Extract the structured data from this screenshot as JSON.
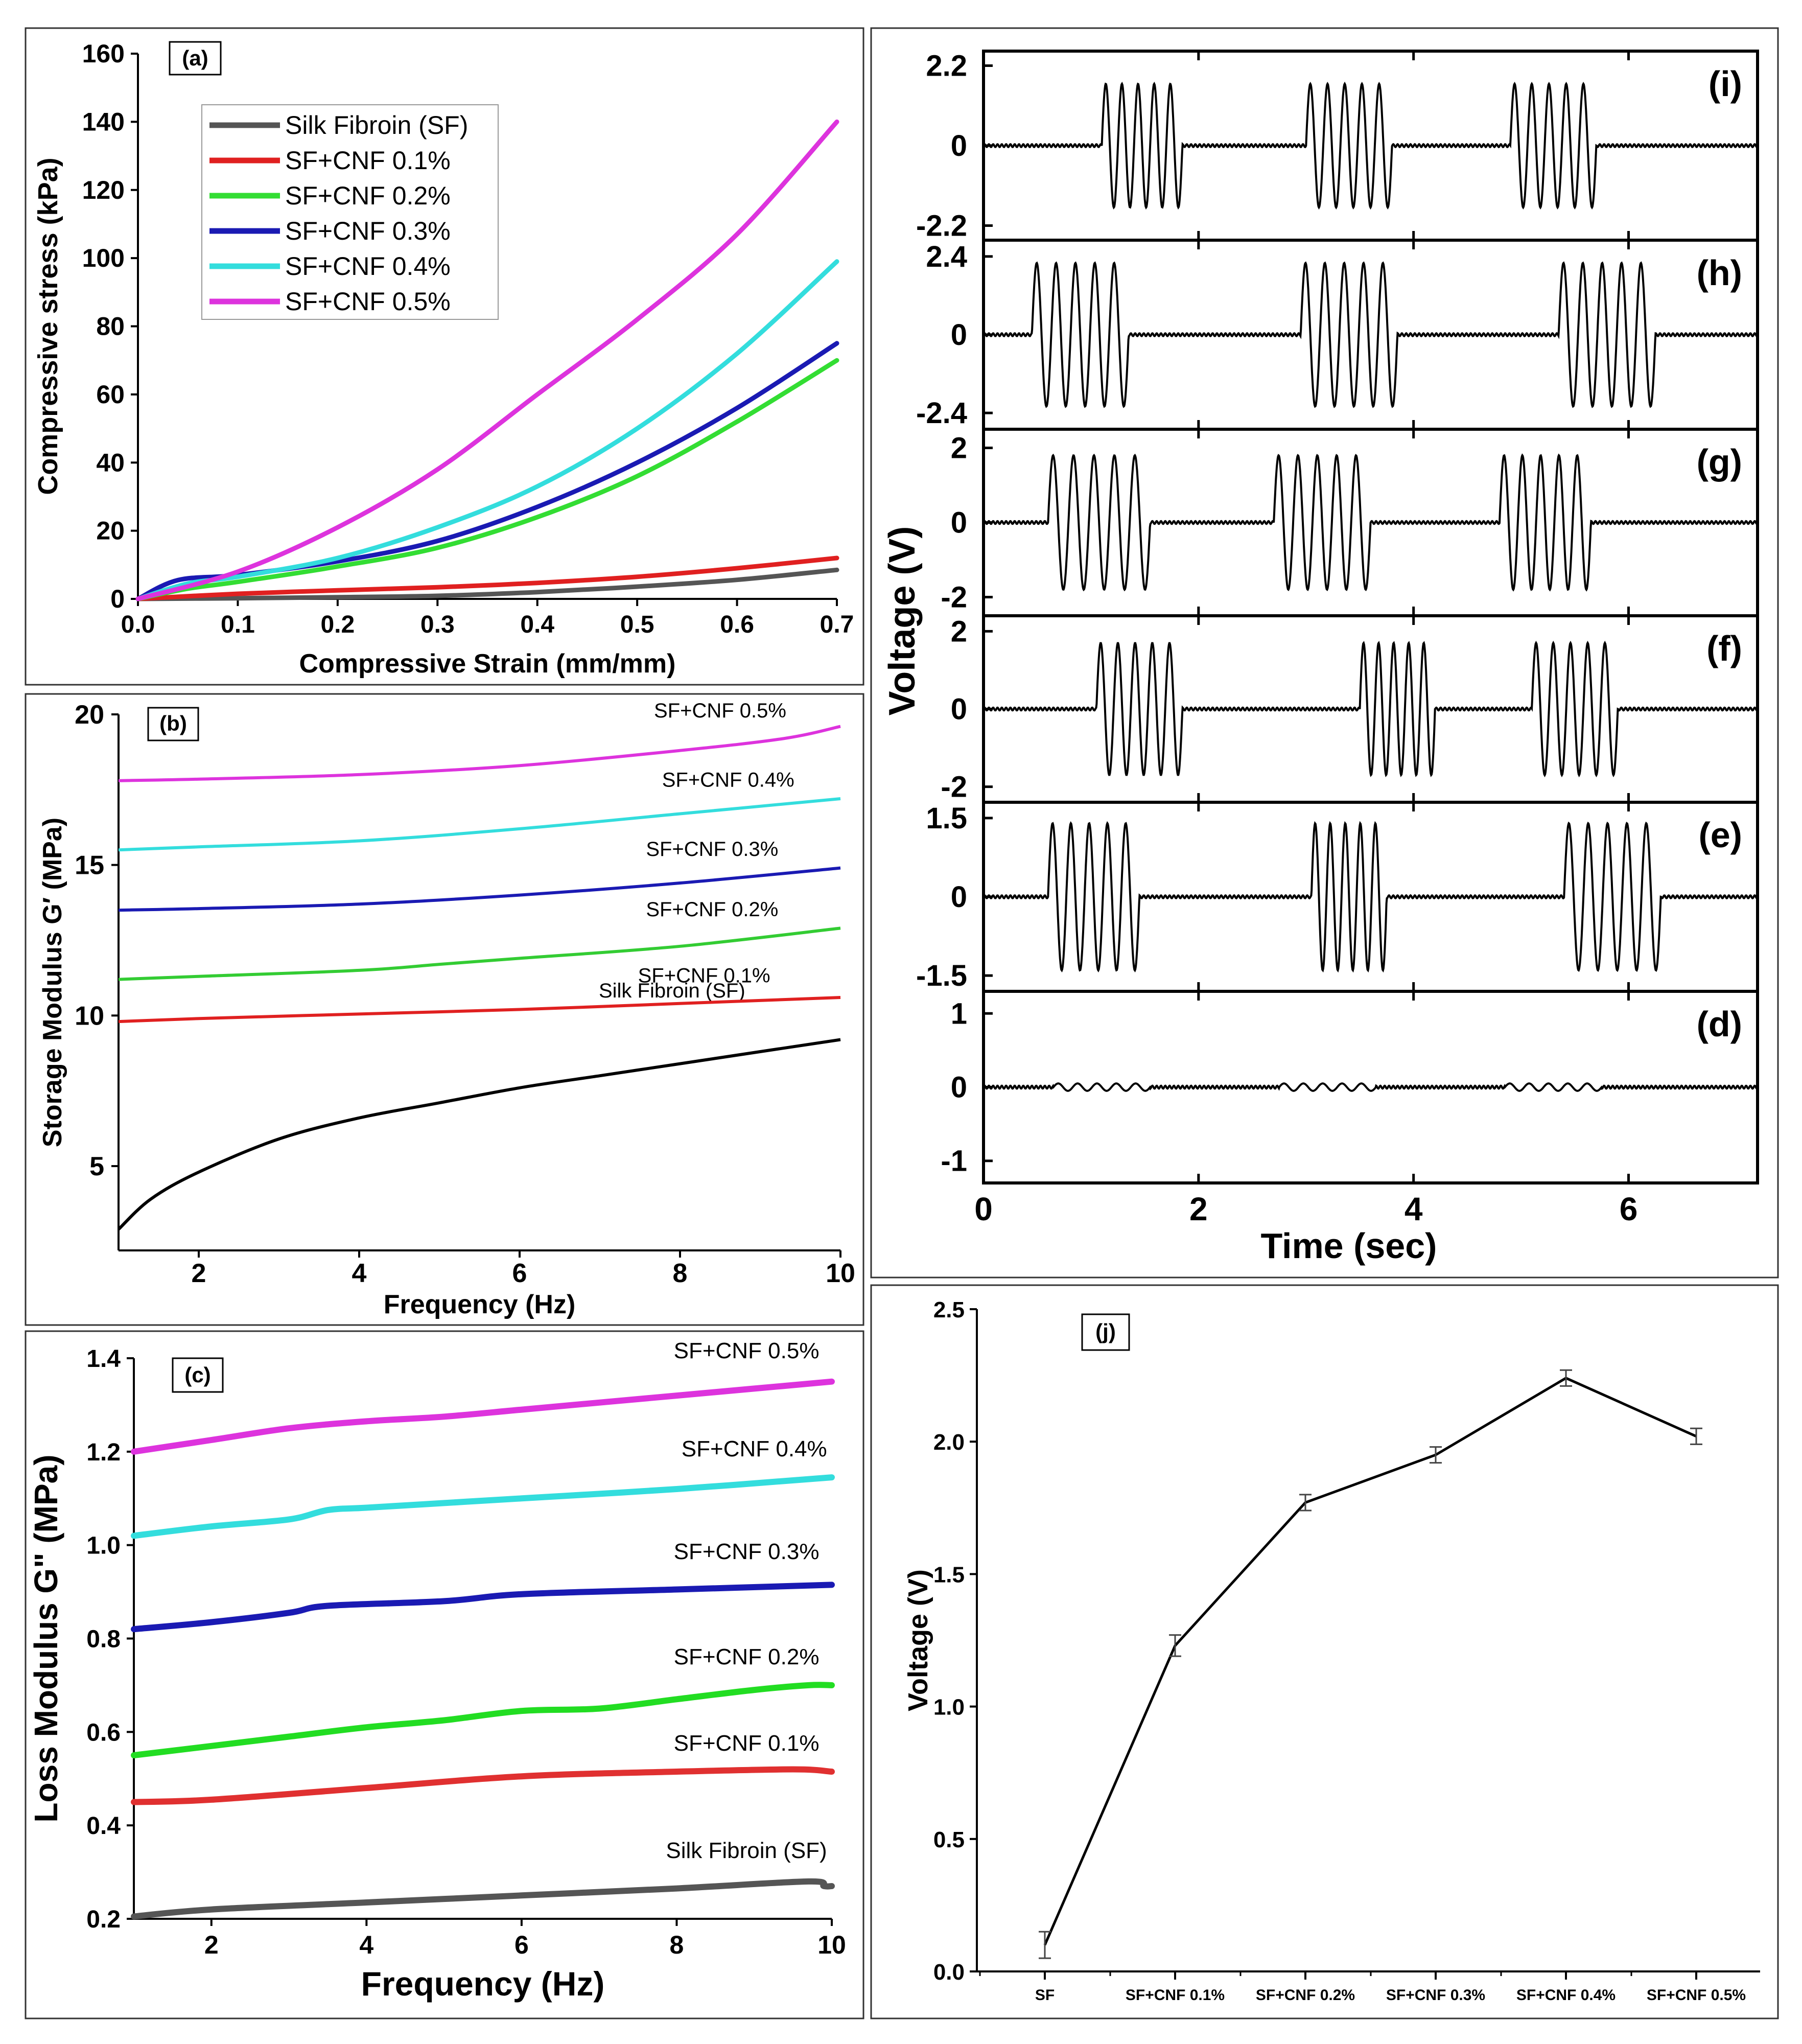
{
  "chart_data": [
    {
      "id": "a",
      "type": "line",
      "panel_label": "(a)",
      "title": "",
      "xlabel": "Compressive Strain (mm/mm)",
      "ylabel": "Compressive stress (kPa)",
      "xlim": [
        0,
        0.7
      ],
      "ylim": [
        0,
        160
      ],
      "xticks": [
        0.0,
        0.1,
        0.2,
        0.3,
        0.4,
        0.5,
        0.6,
        0.7
      ],
      "xtick_labels": [
        "0.0",
        "0.1",
        "0.2",
        "0.3",
        "0.4",
        "0.5",
        "0.6",
        "0.7"
      ],
      "yticks": [
        0,
        20,
        40,
        60,
        80,
        100,
        120,
        140,
        160
      ],
      "ytick_labels": [
        "0",
        "20",
        "40",
        "60",
        "80",
        "100",
        "120",
        "140",
        "160"
      ],
      "legend_position": "top-left",
      "series": [
        {
          "name": "Silk Fibroin (SF)",
          "color": "#555555",
          "x": [
            0,
            0.1,
            0.2,
            0.3,
            0.4,
            0.5,
            0.6,
            0.7
          ],
          "y": [
            0,
            0.2,
            0.5,
            0.9,
            2.0,
            3.6,
            5.6,
            8.5
          ]
        },
        {
          "name": "SF+CNF 0.1%",
          "color": "#e02020",
          "x": [
            0,
            0.1,
            0.2,
            0.3,
            0.4,
            0.5,
            0.6,
            0.7
          ],
          "y": [
            0,
            1.5,
            2.5,
            3.4,
            4.7,
            6.5,
            9.0,
            12
          ]
        },
        {
          "name": "SF+CNF 0.2%",
          "color": "#33dd33",
          "x": [
            0,
            0.05,
            0.1,
            0.2,
            0.3,
            0.4,
            0.5,
            0.6,
            0.7
          ],
          "y": [
            0,
            3,
            5,
            9.5,
            15,
            24,
            36,
            52,
            70
          ]
        },
        {
          "name": "SF+CNF 0.3%",
          "color": "#1a1ab3",
          "x": [
            0,
            0.04,
            0.1,
            0.2,
            0.3,
            0.4,
            0.5,
            0.6,
            0.7
          ],
          "y": [
            0,
            5.5,
            7,
            11,
            17,
            27,
            40,
            56,
            75
          ]
        },
        {
          "name": "SF+CNF 0.4%",
          "color": "#33dddd",
          "x": [
            0,
            0.05,
            0.1,
            0.2,
            0.3,
            0.4,
            0.5,
            0.6,
            0.7
          ],
          "y": [
            0,
            4.5,
            6.5,
            12,
            21,
            33,
            50,
            72,
            99
          ]
        },
        {
          "name": "SF+CNF 0.5%",
          "color": "#dd33dd",
          "x": [
            0,
            0.1,
            0.2,
            0.3,
            0.4,
            0.5,
            0.6,
            0.7
          ],
          "y": [
            0,
            8,
            21,
            38,
            60,
            82,
            107,
            140
          ]
        }
      ]
    },
    {
      "id": "b",
      "type": "line",
      "panel_label": "(b)",
      "title": "",
      "xlabel": "Frequency (Hz)",
      "ylabel": "Storage Modulus G′ (MPa)",
      "xlim": [
        1,
        10
      ],
      "ylim": [
        2.2,
        20
      ],
      "xticks": [
        2,
        4,
        6,
        8,
        10
      ],
      "xtick_labels": [
        "2",
        "4",
        "6",
        "8",
        "10"
      ],
      "yticks": [
        5,
        10,
        15,
        20
      ],
      "ytick_labels": [
        "5",
        "10",
        "15",
        "20"
      ],
      "legend_position": "inline labels",
      "series": [
        {
          "name": "Silk Fibroin (SF)",
          "color": "#000000",
          "x": [
            1,
            1.4,
            2,
            3,
            4,
            5,
            6,
            7,
            8,
            9,
            10
          ],
          "y": [
            2.9,
            3.9,
            4.8,
            5.9,
            6.6,
            7.1,
            7.6,
            8.0,
            8.4,
            8.8,
            9.2
          ],
          "label_x": 7.9,
          "label_y": 10.6
        },
        {
          "name": "SF+CNF 0.1%",
          "color": "#e02020",
          "x": [
            1,
            2,
            4,
            6,
            8,
            10
          ],
          "y": [
            9.8,
            9.9,
            10.05,
            10.2,
            10.4,
            10.6
          ],
          "label_x": 8.3,
          "label_y": 11.1
        },
        {
          "name": "SF+CNF 0.2%",
          "color": "#33cc33",
          "x": [
            1,
            2,
            4,
            5,
            6,
            8,
            10
          ],
          "y": [
            11.2,
            11.3,
            11.5,
            11.7,
            11.9,
            12.3,
            12.9
          ],
          "label_x": 8.4,
          "label_y": 13.3
        },
        {
          "name": "SF+CNF 0.3%",
          "color": "#1a1ab3",
          "x": [
            1,
            2,
            4,
            6,
            8,
            10
          ],
          "y": [
            13.5,
            13.55,
            13.7,
            14.0,
            14.4,
            14.9
          ],
          "label_x": 8.4,
          "label_y": 15.3
        },
        {
          "name": "SF+CNF 0.4%",
          "color": "#33dddd",
          "x": [
            1,
            2,
            4,
            6,
            8,
            10
          ],
          "y": [
            15.5,
            15.6,
            15.8,
            16.2,
            16.7,
            17.2
          ],
          "label_x": 8.6,
          "label_y": 17.6
        },
        {
          "name": "SF+CNF 0.5%",
          "color": "#dd33dd",
          "x": [
            1,
            2,
            4,
            6,
            8,
            9.3,
            10
          ],
          "y": [
            17.8,
            17.85,
            18.0,
            18.3,
            18.8,
            19.2,
            19.6
          ],
          "label_x": 8.5,
          "label_y": 19.9
        }
      ]
    },
    {
      "id": "c",
      "type": "line",
      "panel_label": "(c)",
      "title": "",
      "xlabel": "Frequency (Hz)",
      "ylabel": "Loss Modulus G\" (MPa)",
      "xlim": [
        1,
        10
      ],
      "ylim": [
        0.2,
        1.4
      ],
      "xticks": [
        2,
        4,
        6,
        8,
        10
      ],
      "xtick_labels": [
        "2",
        "4",
        "6",
        "8",
        "10"
      ],
      "yticks": [
        0.2,
        0.4,
        0.6,
        0.8,
        1.0,
        1.2,
        1.4
      ],
      "ytick_labels": [
        "0.2",
        "0.4",
        "0.6",
        "0.8",
        "1.0",
        "1.2",
        "1.4"
      ],
      "legend_position": "inline labels",
      "series": [
        {
          "name": "Silk Fibroin (SF)",
          "color": "#555555",
          "x": [
            1,
            2,
            4,
            6,
            8,
            9.7,
            9.9,
            10
          ],
          "y": [
            0.205,
            0.22,
            0.235,
            0.25,
            0.265,
            0.28,
            0.27,
            0.27
          ],
          "label_x": 8.9,
          "label_y": 0.33
        },
        {
          "name": "SF+CNF 0.1%",
          "color": "#e03030",
          "x": [
            1,
            2,
            4,
            6,
            8,
            9.5,
            10
          ],
          "y": [
            0.45,
            0.455,
            0.48,
            0.505,
            0.515,
            0.52,
            0.515
          ],
          "label_x": 8.9,
          "label_y": 0.56
        },
        {
          "name": "SF+CNF 0.2%",
          "color": "#22dd22",
          "x": [
            1,
            2,
            3,
            4,
            5,
            6,
            7,
            8,
            9,
            9.7,
            10
          ],
          "y": [
            0.55,
            0.57,
            0.59,
            0.61,
            0.625,
            0.645,
            0.65,
            0.67,
            0.69,
            0.7,
            0.7
          ],
          "label_x": 8.9,
          "label_y": 0.745
        },
        {
          "name": "SF+CNF 0.3%",
          "color": "#1a1ab3",
          "x": [
            1,
            2,
            3,
            3.5,
            5,
            6,
            8,
            10
          ],
          "y": [
            0.82,
            0.835,
            0.855,
            0.87,
            0.88,
            0.895,
            0.905,
            0.915
          ],
          "label_x": 8.9,
          "label_y": 0.97
        },
        {
          "name": "SF+CNF 0.4%",
          "color": "#33dddd",
          "x": [
            1,
            2,
            3,
            3.5,
            4,
            5,
            6,
            8,
            10
          ],
          "y": [
            1.02,
            1.04,
            1.055,
            1.075,
            1.08,
            1.09,
            1.1,
            1.12,
            1.145
          ],
          "label_x": 9.0,
          "label_y": 1.19
        },
        {
          "name": "SF+CNF 0.5%",
          "color": "#dd33dd",
          "x": [
            1,
            2,
            3,
            4,
            5,
            6,
            7,
            8,
            9,
            10
          ],
          "y": [
            1.2,
            1.225,
            1.25,
            1.265,
            1.275,
            1.29,
            1.305,
            1.32,
            1.335,
            1.35
          ],
          "label_x": 8.9,
          "label_y": 1.4
        }
      ]
    },
    {
      "id": "d-i",
      "type": "line",
      "title": "",
      "xlabel": "Time (sec)",
      "ylabel": "Voltage (V)",
      "xlim": [
        0,
        7.2
      ],
      "xticks": [
        0,
        2,
        4,
        6
      ],
      "xtick_labels": [
        "0",
        "2",
        "4",
        "6"
      ],
      "subplots": [
        {
          "label": "(i)",
          "amplitude": 1.7,
          "ylim": [
            -2.6,
            2.6
          ],
          "yticks": [
            2.2,
            0,
            -2.2
          ],
          "ytick_labels": [
            "2.2",
            "0",
            "-2.2"
          ],
          "bursts": [
            [
              1.1,
              1.85
            ],
            [
              3.0,
              3.8
            ],
            [
              4.9,
              5.7
            ]
          ]
        },
        {
          "label": "(h)",
          "amplitude": 2.2,
          "ylim": [
            -2.9,
            2.9
          ],
          "yticks": [
            2.4,
            0,
            -2.4
          ],
          "ytick_labels": [
            "2.4",
            "0",
            "-2.4"
          ],
          "bursts": [
            [
              0.45,
              1.35
            ],
            [
              2.95,
              3.85
            ],
            [
              5.35,
              6.25
            ]
          ]
        },
        {
          "label": "(g)",
          "amplitude": 1.8,
          "ylim": [
            -2.5,
            2.5
          ],
          "yticks": [
            2,
            0,
            -2
          ],
          "ytick_labels": [
            "2",
            "0",
            "-2"
          ],
          "bursts": [
            [
              0.6,
              1.55
            ],
            [
              2.7,
              3.6
            ],
            [
              4.8,
              5.65
            ]
          ]
        },
        {
          "label": "(f)",
          "amplitude": 1.7,
          "ylim": [
            -2.4,
            2.4
          ],
          "yticks": [
            2,
            0,
            -2
          ],
          "ytick_labels": [
            "2",
            "0",
            "-2"
          ],
          "bursts": [
            [
              1.05,
              1.85
            ],
            [
              3.5,
              4.2
            ],
            [
              5.1,
              5.9
            ]
          ]
        },
        {
          "label": "(e)",
          "amplitude": 1.4,
          "ylim": [
            -1.8,
            1.8
          ],
          "yticks": [
            1.5,
            0,
            -1.5
          ],
          "ytick_labels": [
            "1.5",
            "0",
            "-1.5"
          ],
          "bursts": [
            [
              0.6,
              1.45
            ],
            [
              3.05,
              3.75
            ],
            [
              5.4,
              6.3
            ]
          ]
        },
        {
          "label": "(d)",
          "amplitude": 0.05,
          "ylim": [
            -1.3,
            1.3
          ],
          "yticks": [
            1,
            0,
            -1
          ],
          "ytick_labels": [
            "1",
            "0",
            "-1"
          ],
          "bursts": [
            [
              0.65,
              1.55
            ],
            [
              2.75,
              3.65
            ],
            [
              4.85,
              5.75
            ]
          ]
        }
      ]
    },
    {
      "id": "j",
      "type": "line",
      "panel_label": "(j)",
      "title": "",
      "xlabel": "",
      "ylabel": "Voltage (V)",
      "ylim": [
        0,
        2.5
      ],
      "yticks": [
        0.0,
        0.5,
        1.0,
        1.5,
        2.0,
        2.5
      ],
      "ytick_labels": [
        "0.0",
        "0.5",
        "1.0",
        "1.5",
        "2.0",
        "2.5"
      ],
      "categories": [
        "SF",
        "SF+CNF  0.1%",
        "SF+CNF 0.2%",
        "SF+CNF 0.3%",
        "SF+CNF 0.4%",
        "SF+CNF 0.5%"
      ],
      "values": [
        0.1,
        1.23,
        1.77,
        1.95,
        2.24,
        2.02
      ],
      "errors": [
        0.05,
        0.04,
        0.03,
        0.03,
        0.03,
        0.03
      ],
      "color": "#000000"
    }
  ]
}
